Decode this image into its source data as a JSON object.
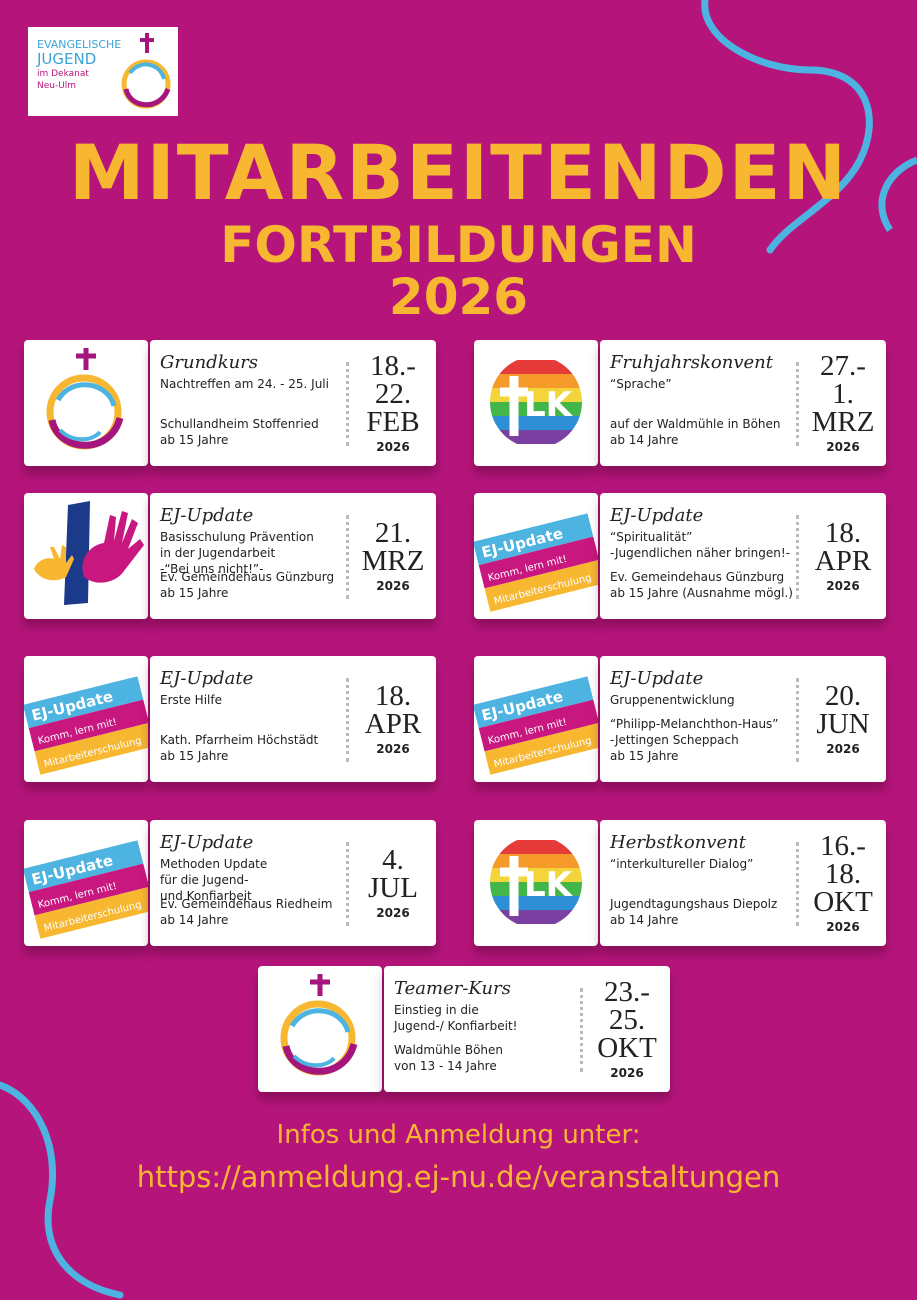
{
  "logo": {
    "line1": "EVANGELISCHE",
    "line2": "JUGEND",
    "line3": "im Dekanat",
    "line4": "Neu-Ulm"
  },
  "header": {
    "title": "MITARBEITENDEN",
    "subtitle": "FORTBILDUNGEN",
    "year": "2026"
  },
  "events": [
    {
      "title": "Grundkurs",
      "info": [
        "Nachtreffen am 24. - 25. Juli"
      ],
      "place": [
        "Schullandheim Stoffenried",
        "ab 15 Jahre"
      ],
      "date": [
        "18.-",
        "22.",
        "FEB"
      ],
      "year": "2026"
    },
    {
      "title": "Fruhjahrskonvent",
      "badge": "LK",
      "info": [
        "“Sprache”"
      ],
      "place": [
        "auf der Waldmühle in Böhen",
        "ab 14 Jahre"
      ],
      "date": [
        "27.-",
        "1.",
        "MRZ"
      ],
      "year": "2026"
    },
    {
      "title": "EJ-Update",
      "info": [
        "Basisschulung Prävention",
        "in der Jugendarbeit",
        "-“Bei uns nicht!”-"
      ],
      "place": [
        "Ev. Gemeindehaus Günzburg",
        "ab 15 Jahre"
      ],
      "date": [
        "21.",
        "MRZ"
      ],
      "year": "2026"
    },
    {
      "title": "EJ-Update",
      "badge_lines": [
        "EJ-Update",
        "Komm, lern mit!",
        "Mitarbeiterschulung"
      ],
      "info": [
        "“Spiritualität”",
        "-Jugendlichen näher bringen!-"
      ],
      "place": [
        "Ev. Gemeindehaus Günzburg",
        "ab 15 Jahre (Ausnahme mögl.)"
      ],
      "date": [
        "18.",
        "APR"
      ],
      "year": "2026"
    },
    {
      "title": "EJ-Update",
      "badge_lines": [
        "EJ-Update",
        "Komm, lern mit!",
        "Mitarbeiterschulung"
      ],
      "info": [
        "Erste Hilfe"
      ],
      "place": [
        "Kath. Pfarrheim Höchstädt",
        "ab 15 Jahre"
      ],
      "date": [
        "18.",
        "APR"
      ],
      "year": "2026"
    },
    {
      "title": "EJ-Update",
      "badge_lines": [
        "EJ-Update",
        "Komm, lern mit!",
        "Mitarbeiterschulung"
      ],
      "info": [
        "Gruppenentwicklung"
      ],
      "place": [
        "“Philipp-Melanchthon-Haus”",
        "-Jettingen Scheppach",
        "ab 15 Jahre"
      ],
      "date": [
        "20.",
        "JUN"
      ],
      "year": "2026"
    },
    {
      "title": "EJ-Update",
      "badge_lines": [
        "EJ-Update",
        "Komm, lern mit!",
        "Mitarbeiterschulung"
      ],
      "info": [
        "Methoden Update",
        "für die Jugend-",
        "und Konfiarbeit"
      ],
      "place": [
        "Ev. Gemeindehaus Riedheim",
        "ab 14 Jahre"
      ],
      "date": [
        "4.",
        "JUL"
      ],
      "year": "2026"
    },
    {
      "title": "Herbstkonvent",
      "badge": "LK",
      "info": [
        "“interkultureller Dialog”"
      ],
      "place": [
        "Jugendtagungshaus Diepolz",
        "ab 14 Jahre"
      ],
      "date": [
        "16.-",
        "18.",
        "OKT"
      ],
      "year": "2026"
    },
    {
      "title": "Teamer-Kurs",
      "info": [
        "Einstieg in die",
        "Jugend-/ Konfiarbeit!"
      ],
      "place": [
        "Waldmühle Böhen",
        "von 13 - 14 Jahre"
      ],
      "date": [
        "23.-",
        "25.",
        "OKT"
      ],
      "year": "2026"
    }
  ],
  "footer": {
    "line1": "Infos und Anmeldung unter:",
    "url": "https://anmeldung.ej-nu.de/veranstaltungen"
  }
}
